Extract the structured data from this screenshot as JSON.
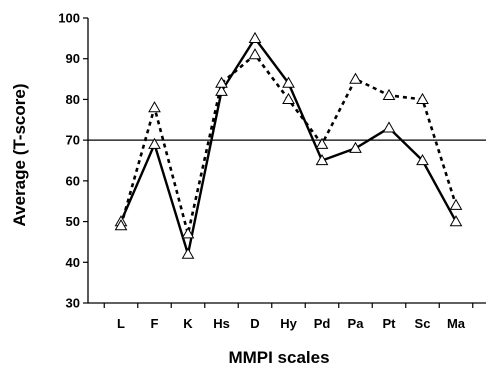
{
  "chart_data": {
    "type": "line",
    "categories": [
      "L",
      "F",
      "K",
      "Hs",
      "D",
      "Hy",
      "Pd",
      "Pa",
      "Pt",
      "Sc",
      "Ma"
    ],
    "series": [
      {
        "style": "solid",
        "color": "#000000",
        "marker": "open-triangle",
        "values": [
          50,
          69,
          42,
          82,
          95,
          84,
          65,
          68,
          73,
          65,
          50
        ]
      },
      {
        "style": "dotted",
        "color": "#000000",
        "marker": "open-triangle",
        "values": [
          49,
          78,
          47,
          84,
          91,
          80,
          69,
          85,
          81,
          80,
          54
        ]
      }
    ],
    "reference_line": 70,
    "title": "",
    "xlabel": "MMPI scales",
    "ylabel": "Average (T-score)",
    "ylim": [
      30,
      100
    ],
    "yticks": [
      30,
      40,
      50,
      60,
      70,
      80,
      90,
      100
    ],
    "grid": false,
    "legend": "none"
  }
}
